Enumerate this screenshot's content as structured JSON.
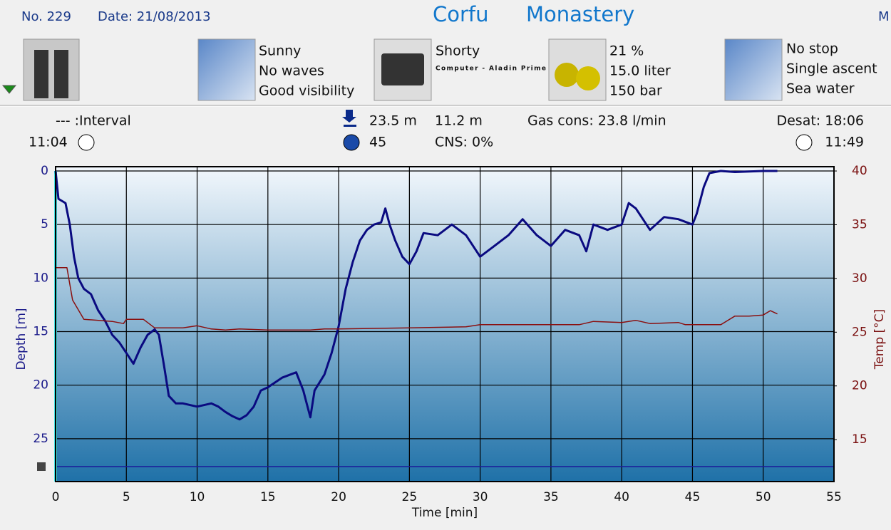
{
  "header": {
    "number": "No. 229",
    "date": "Date: 21/08/2013",
    "site": "Corfu",
    "location": "Monastery",
    "cut": "M"
  },
  "info": {
    "weather": [
      "Sunny",
      "No waves",
      "Good visibility"
    ],
    "suit": "Shorty",
    "computer": "Computer - Aladin Prime",
    "gas": [
      "21 %",
      "15.0 liter",
      "150 bar"
    ],
    "dive": [
      "No stop",
      "Single ascent",
      "Sea water"
    ]
  },
  "stats": {
    "interval": "--- :Interval",
    "entry_time": "11:04",
    "max_depth": "23.5 m",
    "avg_depth": "11.2 m",
    "duration": "45",
    "cns": "CNS:  0%",
    "gas_cons": "Gas cons: 23.8 l/min",
    "desat": "Desat: 18:06",
    "exit_time": "11:49"
  },
  "chart_data": {
    "type": "line",
    "x_label": "Time [min]",
    "y_label": "Depth [m]",
    "y2_label": "Temp [°C]",
    "xlim": [
      0,
      55
    ],
    "xticks": [
      0,
      5,
      10,
      15,
      20,
      25,
      30,
      35,
      40,
      45,
      50,
      55
    ],
    "ylim": [
      29,
      -0.4
    ],
    "yticks": [
      0,
      5,
      10,
      15,
      20,
      25
    ],
    "y2lim": [
      11.1,
      40.4
    ],
    "y2ticks": [
      15,
      20,
      25,
      30,
      35,
      40
    ],
    "grid": true,
    "series": [
      {
        "name": "Depth",
        "color": "#0a0a80",
        "x": [
          0,
          0.2,
          0.7,
          1,
          1.3,
          1.6,
          2,
          2.5,
          3,
          3.5,
          4,
          4.5,
          5,
          5.5,
          6,
          6.5,
          7,
          7.3,
          7.7,
          8,
          8.5,
          9,
          10,
          11,
          11.5,
          12,
          12.5,
          13,
          13.5,
          14,
          14.5,
          15,
          16,
          17,
          17.5,
          17.8,
          18,
          18.3,
          19,
          19.5,
          20,
          20.5,
          21,
          21.5,
          22,
          22.5,
          23,
          23.3,
          23.6,
          24,
          24.5,
          25,
          25.5,
          26,
          27,
          28,
          29,
          30,
          31,
          32,
          33,
          34,
          35,
          36,
          37,
          37.5,
          38,
          39,
          40,
          40.5,
          41,
          42,
          43,
          44,
          45,
          45.3,
          45.8,
          46.2,
          47,
          48,
          50,
          51
        ],
        "values": [
          0,
          2.6,
          3,
          5,
          8,
          10,
          11,
          11.5,
          13,
          14,
          15.3,
          16,
          17,
          18,
          16.5,
          15.3,
          14.8,
          15.3,
          18.5,
          21,
          21.7,
          21.7,
          22,
          21.7,
          22,
          22.5,
          22.9,
          23.2,
          22.8,
          22,
          20.5,
          20.2,
          19.3,
          18.8,
          20.5,
          22,
          23,
          20.5,
          19,
          17,
          14.5,
          11,
          8.5,
          6.5,
          5.5,
          5,
          4.8,
          3.5,
          5,
          6.5,
          8,
          8.7,
          7.5,
          5.8,
          6,
          5,
          6,
          8,
          7,
          6,
          4.5,
          6,
          7,
          5.5,
          6,
          7.5,
          5,
          5.5,
          5,
          3,
          3.5,
          5.5,
          4.3,
          4.5,
          5,
          4,
          1.5,
          0.2,
          0,
          0.1,
          0,
          0
        ]
      },
      {
        "name": "Temperature",
        "color": "#8a1010",
        "axis": "y2",
        "x": [
          0,
          0.8,
          1.2,
          2,
          4,
          4.8,
          5,
          6.2,
          7,
          9,
          10,
          11,
          12,
          13,
          15,
          17,
          18,
          19,
          20,
          25,
          29,
          30,
          37,
          38,
          40,
          41,
          42,
          44,
          44.5,
          47,
          48,
          49,
          50,
          50.5,
          51
        ],
        "values": [
          31,
          31,
          28,
          26.2,
          26,
          25.8,
          26.2,
          26.2,
          25.4,
          25.4,
          25.6,
          25.3,
          25.2,
          25.3,
          25.2,
          25.2,
          25.2,
          25.3,
          25.3,
          25.4,
          25.5,
          25.7,
          25.7,
          26,
          25.9,
          26.1,
          25.8,
          25.9,
          25.7,
          25.7,
          26.5,
          26.5,
          26.6,
          27,
          26.7
        ]
      }
    ]
  }
}
